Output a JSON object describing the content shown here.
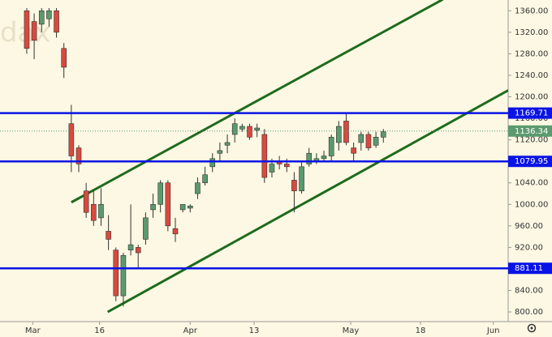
{
  "chart_data": {
    "type": "candlestick",
    "watermark": "dax",
    "x": [
      0,
      1,
      2,
      3,
      4,
      5,
      6,
      7,
      8,
      9,
      10,
      11,
      12,
      13,
      14,
      15,
      16,
      17,
      18,
      19,
      20,
      21,
      22,
      23,
      24,
      25,
      26,
      27,
      28,
      29,
      30,
      31,
      32,
      33,
      34,
      35,
      36,
      37,
      38,
      39,
      40,
      41,
      42,
      43,
      44,
      45,
      46,
      47,
      48
    ],
    "open": [
      1360,
      1340,
      1335,
      1345,
      1360,
      1290,
      1150,
      1105,
      1025,
      1000,
      975,
      950,
      915,
      830,
      915,
      920,
      935,
      990,
      1000,
      1040,
      955,
      990,
      993,
      1020,
      1040,
      1070,
      1095,
      1110,
      1130,
      1140,
      1145,
      1138,
      1130,
      1060,
      1080,
      1075,
      1045,
      1025,
      1075,
      1080,
      1085,
      1090,
      1115,
      1155,
      1105,
      1115,
      1130,
      1110,
      1125
    ],
    "high": [
      1365,
      1355,
      1365,
      1365,
      1365,
      1300,
      1185,
      1110,
      1040,
      1025,
      1030,
      980,
      920,
      910,
      1000,
      925,
      985,
      1020,
      1045,
      1045,
      975,
      1000,
      1000,
      1050,
      1070,
      1095,
      1115,
      1130,
      1160,
      1150,
      1150,
      1150,
      1140,
      1085,
      1090,
      1085,
      1060,
      1080,
      1105,
      1095,
      1100,
      1130,
      1155,
      1170,
      1115,
      1135,
      1135,
      1135,
      1140
    ],
    "low": [
      1280,
      1270,
      1320,
      1330,
      1310,
      1235,
      1060,
      1060,
      975,
      960,
      960,
      915,
      820,
      810,
      905,
      880,
      925,
      975,
      985,
      950,
      930,
      985,
      985,
      1010,
      1035,
      1060,
      1080,
      1095,
      1115,
      1135,
      1120,
      1125,
      1040,
      1050,
      1065,
      1060,
      985,
      1020,
      1070,
      1075,
      1080,
      1080,
      1100,
      1110,
      1080,
      1100,
      1100,
      1105,
      1115
    ],
    "close": [
      1290,
      1305,
      1360,
      1360,
      1320,
      1255,
      1090,
      1075,
      985,
      970,
      1000,
      935,
      830,
      905,
      925,
      910,
      975,
      1000,
      1040,
      960,
      945,
      1000,
      997,
      1040,
      1055,
      1085,
      1100,
      1115,
      1150,
      1145,
      1125,
      1142,
      1050,
      1075,
      1075,
      1070,
      1025,
      1070,
      1095,
      1085,
      1090,
      1125,
      1145,
      1115,
      1095,
      1130,
      1105,
      1125,
      1135
    ],
    "up_color": "#5b9a6e",
    "down_color": "#d9493f",
    "xlim": [
      -3.6,
      64.8
    ],
    "xticks": [
      {
        "value": 0.8,
        "label": "Mar"
      },
      {
        "value": 9.8,
        "label": "16"
      },
      {
        "value": 22,
        "label": "Apr"
      },
      {
        "value": 30.6,
        "label": "13"
      },
      {
        "value": 43.6,
        "label": "May"
      },
      {
        "value": 53,
        "label": "18"
      },
      {
        "value": 62.8,
        "label": "Jun"
      }
    ],
    "ylim": [
      782,
      1380
    ],
    "yticks": [
      {
        "value": 800,
        "label": "800.00"
      },
      {
        "value": 840,
        "label": "840.00"
      },
      {
        "value": 880,
        "label": "880.00"
      },
      {
        "value": 920,
        "label": "920.00"
      },
      {
        "value": 960,
        "label": "960.00"
      },
      {
        "value": 1000,
        "label": "1000.00"
      },
      {
        "value": 1040,
        "label": "1040.00"
      },
      {
        "value": 1080,
        "label": "1080.00"
      },
      {
        "value": 1120,
        "label": "1120.00"
      },
      {
        "value": 1160,
        "label": "1160.00"
      },
      {
        "value": 1200,
        "label": "1200.00"
      },
      {
        "value": 1240,
        "label": "1240.00"
      },
      {
        "value": 1280,
        "label": "1280.00"
      },
      {
        "value": 1320,
        "label": "1320.00"
      },
      {
        "value": 1360,
        "label": "1360.00"
      }
    ],
    "hlines": [
      1169.71,
      1079.95,
      881.11
    ],
    "hline_color": "#0a14e6",
    "last_price": 1136.34,
    "trendlines": [
      {
        "x": [
          6,
          56
        ],
        "y": [
          1003.8,
          1381
        ]
      },
      {
        "x": [
          10.9,
          64.8
        ],
        "y": [
          800,
          1212
        ]
      }
    ],
    "trend_color": "#1e6b1e"
  }
}
